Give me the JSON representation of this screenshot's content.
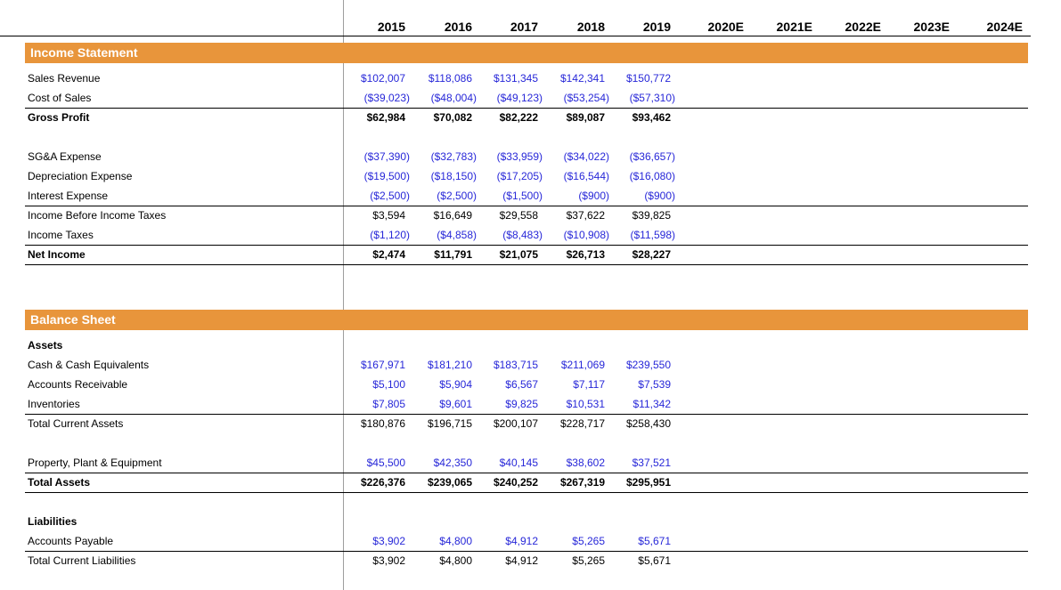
{
  "colors": {
    "section_bar_orange": "#E8953B",
    "input_value_blue": "#2727D8",
    "computed_value_black": "#000000",
    "gridline_gray": "#9e9e9e",
    "border_black": "#000000"
  },
  "columns": [
    "2015",
    "2016",
    "2017",
    "2018",
    "2019",
    "2020E",
    "2021E",
    "2022E",
    "2023E",
    "2024E"
  ],
  "sections": [
    {
      "title": "Income Statement",
      "rows": [
        {
          "type": "input",
          "label": "Sales Revenue",
          "values": [
            "$102,007",
            "$118,086",
            "$131,345",
            "$142,341",
            "$150,772"
          ]
        },
        {
          "type": "input",
          "label": "Cost of Sales",
          "underline": true,
          "values": [
            "($39,023)",
            "($48,004)",
            "($49,123)",
            "($53,254)",
            "($57,310)"
          ]
        },
        {
          "type": "total",
          "label": "Gross Profit",
          "values": [
            "$62,984",
            "$70,082",
            "$82,222",
            "$89,087",
            "$93,462"
          ]
        },
        {
          "type": "spacer"
        },
        {
          "type": "input",
          "label": "SG&A Expense",
          "values": [
            "($37,390)",
            "($32,783)",
            "($33,959)",
            "($34,022)",
            "($36,657)"
          ]
        },
        {
          "type": "input",
          "label": "Depreciation Expense",
          "values": [
            "($19,500)",
            "($18,150)",
            "($17,205)",
            "($16,544)",
            "($16,080)"
          ]
        },
        {
          "type": "input",
          "label": "Interest Expense",
          "underline": true,
          "values": [
            "($2,500)",
            "($2,500)",
            "($1,500)",
            "($900)",
            "($900)"
          ]
        },
        {
          "type": "calc",
          "label": "Income Before Income Taxes",
          "values": [
            "$3,594",
            "$16,649",
            "$29,558",
            "$37,622",
            "$39,825"
          ]
        },
        {
          "type": "input",
          "label": "Income Taxes",
          "underline": true,
          "values": [
            "($1,120)",
            "($4,858)",
            "($8,483)",
            "($10,908)",
            "($11,598)"
          ]
        },
        {
          "type": "total",
          "label": "Net Income",
          "underline": true,
          "values": [
            "$2,474",
            "$11,791",
            "$21,075",
            "$26,713",
            "$28,227"
          ]
        },
        {
          "type": "spacer"
        },
        {
          "type": "spacer"
        }
      ]
    },
    {
      "title": "Balance Sheet",
      "rows": [
        {
          "type": "label",
          "label": "Assets"
        },
        {
          "type": "input",
          "label": "Cash & Cash Equivalents",
          "values": [
            "$167,971",
            "$181,210",
            "$183,715",
            "$211,069",
            "$239,550"
          ]
        },
        {
          "type": "input",
          "label": "Accounts Receivable",
          "values": [
            "$5,100",
            "$5,904",
            "$6,567",
            "$7,117",
            "$7,539"
          ]
        },
        {
          "type": "input",
          "label": "Inventories",
          "underline": true,
          "values": [
            "$7,805",
            "$9,601",
            "$9,825",
            "$10,531",
            "$11,342"
          ]
        },
        {
          "type": "calc",
          "label": "Total Current Assets",
          "values": [
            "$180,876",
            "$196,715",
            "$200,107",
            "$228,717",
            "$258,430"
          ]
        },
        {
          "type": "spacer"
        },
        {
          "type": "input",
          "label": "Property, Plant & Equipment",
          "underline": true,
          "values": [
            "$45,500",
            "$42,350",
            "$40,145",
            "$38,602",
            "$37,521"
          ]
        },
        {
          "type": "total",
          "label": "Total Assets",
          "underline": true,
          "values": [
            "$226,376",
            "$239,065",
            "$240,252",
            "$267,319",
            "$295,951"
          ]
        },
        {
          "type": "spacer"
        },
        {
          "type": "label",
          "label": "Liabilities"
        },
        {
          "type": "input",
          "label": "Accounts Payable",
          "underline": true,
          "values": [
            "$3,902",
            "$4,800",
            "$4,912",
            "$5,265",
            "$5,671"
          ]
        },
        {
          "type": "calc",
          "label": "Total Current Liabilities",
          "values": [
            "$3,902",
            "$4,800",
            "$4,912",
            "$5,265",
            "$5,671"
          ]
        }
      ]
    }
  ]
}
